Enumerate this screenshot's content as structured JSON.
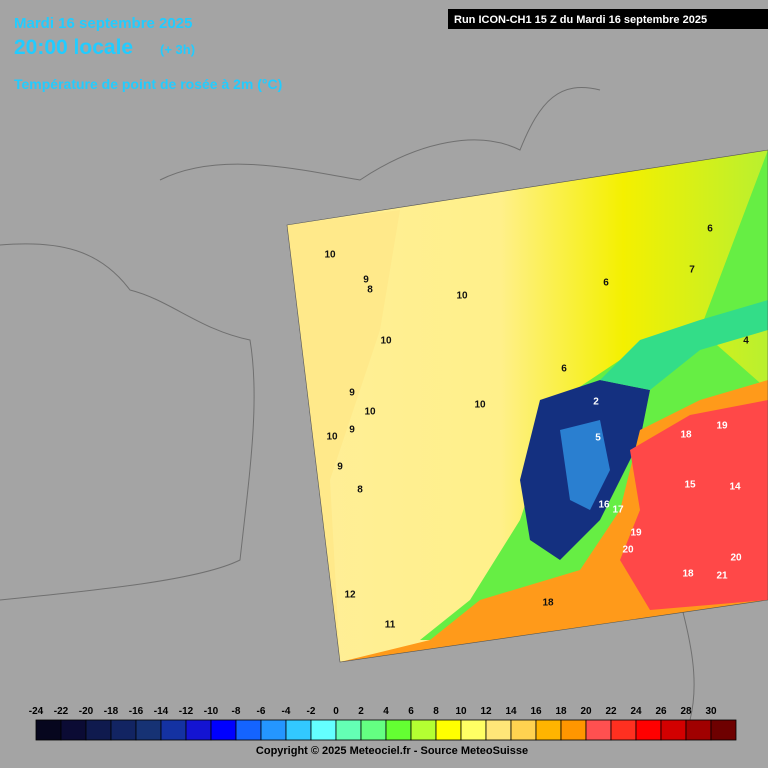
{
  "header": {
    "date": "Mardi 16 septembre 2025",
    "time": "20:00 locale",
    "offset": "(+ 3h)",
    "parameter": "Température de point de rosée à 2m (°C)",
    "run": "Run ICON-CH1 15 Z du Mardi 16 septembre 2025"
  },
  "contour_labels": [
    10,
    9,
    8,
    10,
    10,
    9,
    10,
    9,
    10,
    9,
    8,
    12,
    11,
    10,
    6,
    6,
    7,
    6,
    4,
    2,
    5,
    18,
    19,
    20,
    20,
    18,
    15,
    17,
    16,
    21,
    18,
    19,
    14
  ],
  "colorbar": {
    "ticks": [
      -24,
      -22,
      -20,
      -18,
      -16,
      -14,
      -12,
      -10,
      -8,
      -6,
      -4,
      -2,
      0,
      2,
      4,
      6,
      8,
      10,
      12,
      14,
      16,
      18,
      20,
      22,
      24,
      26,
      28,
      30
    ],
    "colors": [
      "#06061e",
      "#0b0b34",
      "#0f1a4e",
      "#122462",
      "#163274",
      "#1432a2",
      "#1414d2",
      "#0000ff",
      "#1464ff",
      "#2496ff",
      "#32c8ff",
      "#64ffff",
      "#64ffb4",
      "#64ff82",
      "#64ff32",
      "#b4ff32",
      "#ffff00",
      "#ffff64",
      "#ffe678",
      "#ffd250",
      "#ffb400",
      "#ff9600",
      "#ff5050",
      "#ff3020",
      "#ff0000",
      "#d20000",
      "#a00000",
      "#6e0000"
    ]
  },
  "footer": {
    "copyright": "Copyright © 2025 Meteociel.fr - Source MeteoSuisse"
  }
}
